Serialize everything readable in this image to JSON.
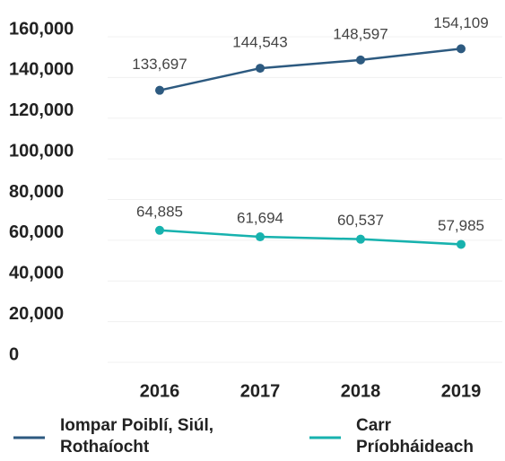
{
  "chart_data": {
    "type": "line",
    "categories": [
      "2016",
      "2017",
      "2018",
      "2019"
    ],
    "series": [
      {
        "name": "Iompar Poiblí, Siúl, Rothaíocht",
        "color": "#2d5a80",
        "values": [
          133697,
          144543,
          148597,
          154109
        ],
        "value_labels": [
          "133,697",
          "144,543",
          "148,597",
          "154,109"
        ]
      },
      {
        "name": "Carr Príobháideach",
        "color": "#17b2ae",
        "values": [
          64885,
          61694,
          60537,
          57985
        ],
        "value_labels": [
          "64,885",
          "61,694",
          "60,537",
          "57,985"
        ]
      }
    ],
    "ylim": [
      0,
      160000
    ],
    "yticks": [
      0,
      {
        "value": 20000,
        "label": "20,000"
      },
      {
        "value": 40000,
        "label": "40,000"
      },
      {
        "value": 60000,
        "label": "60,000"
      },
      {
        "value": 80000,
        "label": "80,000"
      },
      {
        "value": 100000,
        "label": "100,000"
      },
      {
        "value": 120000,
        "label": "120,000"
      },
      {
        "value": 140000,
        "label": "140,000"
      },
      {
        "value": 160000,
        "label": "160,000"
      }
    ],
    "grid": true,
    "legend": "bottom"
  }
}
